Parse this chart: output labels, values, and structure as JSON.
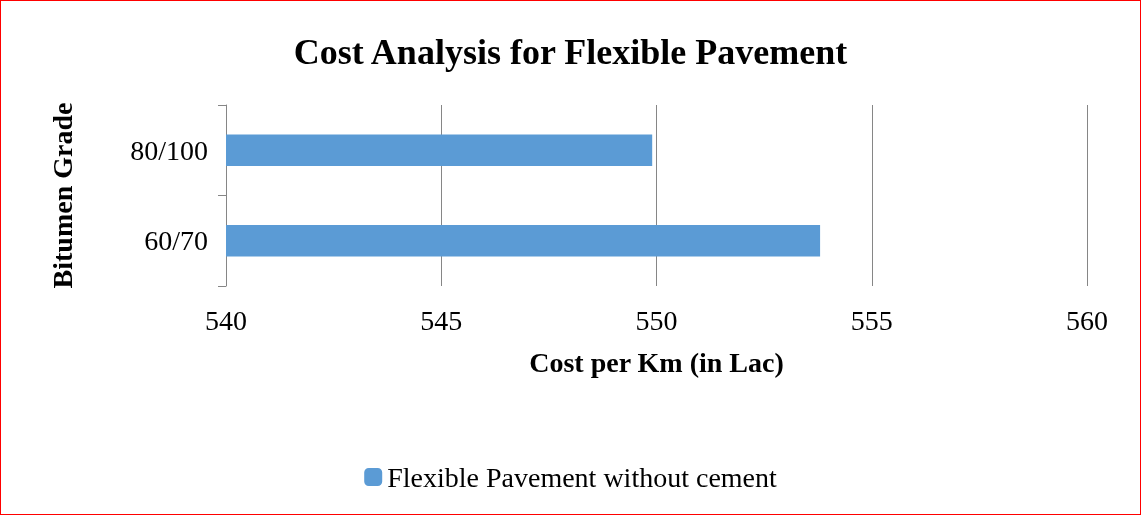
{
  "chart_data": {
    "type": "bar",
    "orientation": "horizontal",
    "title": "Cost Analysis for Flexible Pavement",
    "xlabel": "Cost per Km (in Lac)",
    "ylabel": "Bitumen Grade",
    "categories": [
      "80/100",
      "60/70"
    ],
    "series": [
      {
        "name": "Flexible Pavement without cement",
        "color": "#5b9bd5",
        "values": [
          549.9,
          553.8
        ]
      }
    ],
    "xlim": [
      540,
      560
    ],
    "xticks": [
      540,
      545,
      550,
      555,
      560
    ],
    "grid": "x",
    "legend": "bottom"
  }
}
